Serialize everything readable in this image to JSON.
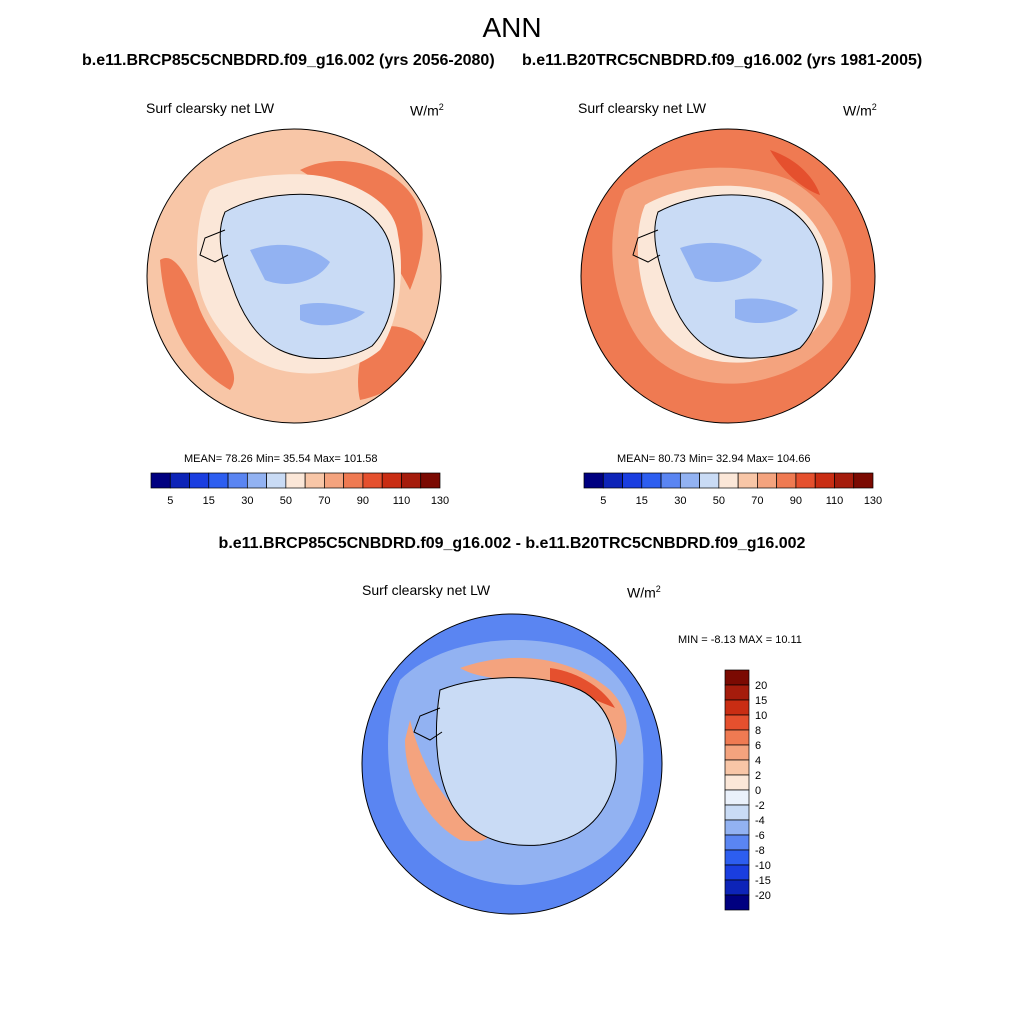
{
  "figure": {
    "title": "ANN",
    "left_case_title": "b.e11.BRCP85C5CNBDRD.f09_g16.002 (yrs 2056-2080)",
    "right_case_title": "b.e11.B20TRC5CNBDRD.f09_g16.002 (yrs 1981-2005)",
    "diff_title": "b.e11.BRCP85C5CNBDRD.f09_g16.002 - b.e11.B20TRC5CNBDRD.f09_g16.002"
  },
  "panels": {
    "left": {
      "variable": "Surf clearsky net LW",
      "units": "W/m",
      "units_exp": "2",
      "stats": "MEAN=  78.26  Min=  35.54  Max= 101.58"
    },
    "right": {
      "variable": "Surf clearsky net LW",
      "units": "W/m",
      "units_exp": "2",
      "stats": "MEAN=  80.73  Min=  32.94  Max= 104.66"
    },
    "diff": {
      "variable": "Surf clearsky net LW",
      "units": "W/m",
      "units_exp": "2",
      "stats": "MIN =  -8.13 MAX =  10.11"
    }
  },
  "colors": {
    "field_scale": [
      "#000080",
      "#0d24b8",
      "#1a3ee0",
      "#2d5ef0",
      "#5a85f2",
      "#92b2f2",
      "#c9dbf5",
      "#fbe7d8",
      "#f8c6a7",
      "#f4a37e",
      "#ef7a52",
      "#e5502e",
      "#c92d13",
      "#a51c0c",
      "#7b0a02"
    ],
    "diff_scale": [
      "#000080",
      "#0d24b8",
      "#1a3ee0",
      "#2d5ef0",
      "#5a85f2",
      "#92b2f2",
      "#c9dbf5",
      "#eaf1fb",
      "#fbe7d8",
      "#f8c6a7",
      "#f4a37e",
      "#ef7a52",
      "#e5502e",
      "#c92d13",
      "#a51c0c",
      "#7b0a02"
    ],
    "coastline": "#000000"
  },
  "chart_data": [
    {
      "type": "heatmap",
      "title": "b.e11.BRCP85C5CNBDRD.f09_g16.002 (yrs 2056-2080)",
      "subtitle": "Surf clearsky net LW",
      "units": "W/m2",
      "projection": "polar stereographic (south pole)",
      "mean": 78.26,
      "min": 35.54,
      "max": 101.58,
      "colorbar_levels": [
        5,
        10,
        15,
        20,
        30,
        40,
        50,
        60,
        70,
        80,
        90,
        100,
        110,
        120,
        130
      ],
      "colorbar_tick_labels": [
        "5",
        "15",
        "30",
        "50",
        "70",
        "90",
        "110",
        "130"
      ],
      "colorbar_orientation": "horizontal"
    },
    {
      "type": "heatmap",
      "title": "b.e11.B20TRC5CNBDRD.f09_g16.002 (yrs 1981-2005)",
      "subtitle": "Surf clearsky net LW",
      "units": "W/m2",
      "projection": "polar stereographic (south pole)",
      "mean": 80.73,
      "min": 32.94,
      "max": 104.66,
      "colorbar_levels": [
        5,
        10,
        15,
        20,
        30,
        40,
        50,
        60,
        70,
        80,
        90,
        100,
        110,
        120,
        130
      ],
      "colorbar_tick_labels": [
        "5",
        "15",
        "30",
        "50",
        "70",
        "90",
        "110",
        "130"
      ],
      "colorbar_orientation": "horizontal"
    },
    {
      "type": "heatmap",
      "title": "b.e11.BRCP85C5CNBDRD.f09_g16.002 - b.e11.B20TRC5CNBDRD.f09_g16.002",
      "subtitle": "Surf clearsky net LW",
      "units": "W/m2",
      "projection": "polar stereographic (south pole)",
      "min": -8.13,
      "max": 10.11,
      "colorbar_tick_labels": [
        "20",
        "15",
        "10",
        "8",
        "6",
        "4",
        "2",
        "0",
        "-2",
        "-4",
        "-6",
        "-8",
        "-10",
        "-15",
        "-20"
      ],
      "colorbar_orientation": "vertical"
    }
  ]
}
